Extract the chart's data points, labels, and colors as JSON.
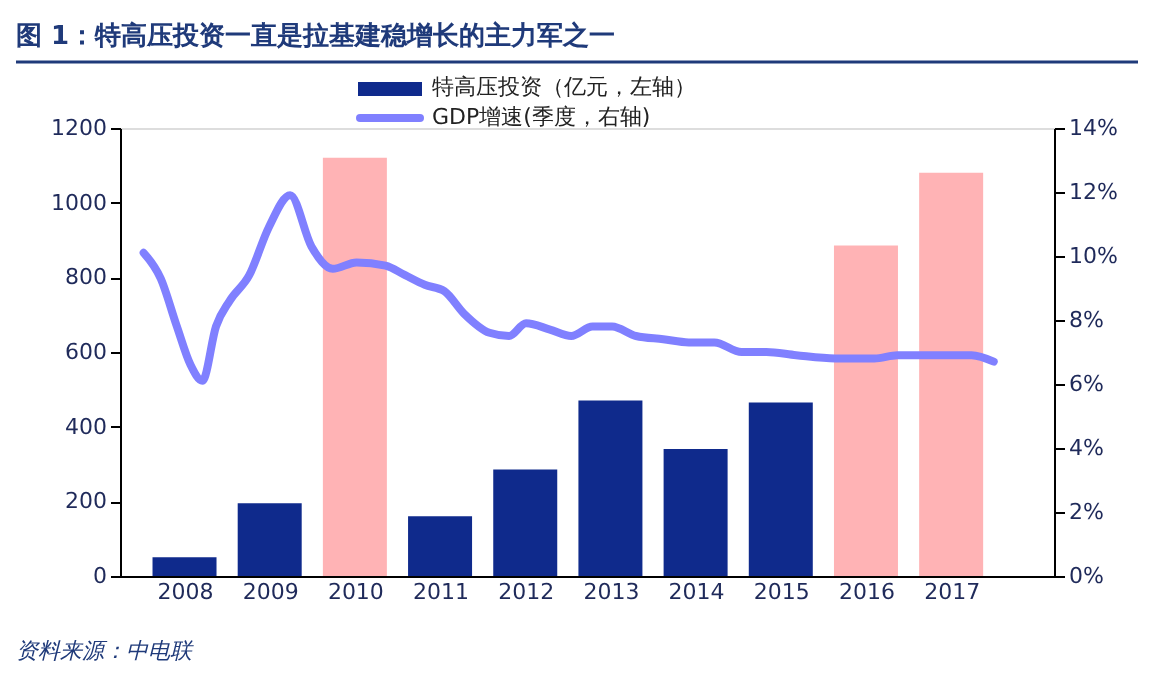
{
  "chart_data": {
    "type": "bar",
    "title": "图 1：特高压投资一直是拉基建稳增长的主力军之一",
    "annotations": [
      "资料来源：中电联"
    ],
    "x": [
      2008,
      2009,
      2010,
      2011,
      2012,
      2013,
      2014,
      2015,
      2016,
      2017
    ],
    "xlim": [
      2007.36,
      2018.09
    ],
    "xticks": [
      2008,
      2009,
      2010,
      2011,
      2012,
      2013,
      2014,
      2015,
      2016,
      2017
    ],
    "ylim": [
      0,
      1200
    ],
    "yticks": [
      0,
      200,
      400,
      600,
      800,
      1000,
      1200
    ],
    "y2lim": [
      0,
      14
    ],
    "y2ticks": [
      {
        "value": 0,
        "label": "0%"
      },
      {
        "value": 2,
        "label": "2%"
      },
      {
        "value": 4,
        "label": "4%"
      },
      {
        "value": 6,
        "label": "6%"
      },
      {
        "value": 8,
        "label": "8%"
      },
      {
        "value": 10,
        "label": "10%"
      },
      {
        "value": 12,
        "label": "12%"
      },
      {
        "value": 14,
        "label": "14%"
      }
    ],
    "grid": false,
    "legend": "top",
    "series": [
      {
        "name": "特高压投资（亿元，左轴）",
        "color": "#0f2a8c",
        "colors": [
          "#0f2a8c",
          "#0f2a8c",
          "#ffb3b5",
          "#0f2a8c",
          "#0f2a8c",
          "#0f2a8c",
          "#0f2a8c",
          "#0f2a8c",
          "#ffb3b5",
          "#ffb3b5"
        ],
        "values": [
          50,
          195,
          1120,
          160,
          285,
          470,
          340,
          465,
          885,
          1080
        ]
      },
      {
        "name": "GDP增速(季度，右轴)",
        "type": "line",
        "axis": "y2",
        "color": "#8080ff",
        "marker": "none",
        "line_style": "solid",
        "x": [
          2007.52,
          2007.72,
          2007.91,
          2008.07,
          2008.21,
          2008.37,
          2008.53,
          2008.76,
          2008.99,
          2009.24,
          2009.49,
          2009.74,
          2010.02,
          2010.36,
          2010.59,
          2010.82,
          2011.05,
          2011.28,
          2011.58,
          2011.81,
          2012.01,
          2012.29,
          2012.54,
          2012.79,
          2013.02,
          2013.3,
          2013.62,
          2013.92,
          2014.22,
          2014.54,
          2014.83,
          2015.18,
          2015.64,
          2016.1,
          2016.37,
          2016.78,
          2017.24,
          2017.5
        ],
        "values": [
          10.1,
          9.3,
          7.8,
          6.6,
          6.1,
          7.8,
          8.6,
          9.4,
          10.9,
          11.9,
          10.3,
          9.6,
          9.8,
          9.7,
          9.4,
          9.1,
          8.9,
          8.2,
          7.6,
          7.5,
          7.9,
          7.7,
          7.5,
          7.8,
          7.8,
          7.5,
          7.4,
          7.3,
          7.3,
          7.0,
          7.0,
          6.9,
          6.8,
          6.8,
          6.9,
          6.9,
          6.9,
          6.7
        ]
      }
    ]
  }
}
